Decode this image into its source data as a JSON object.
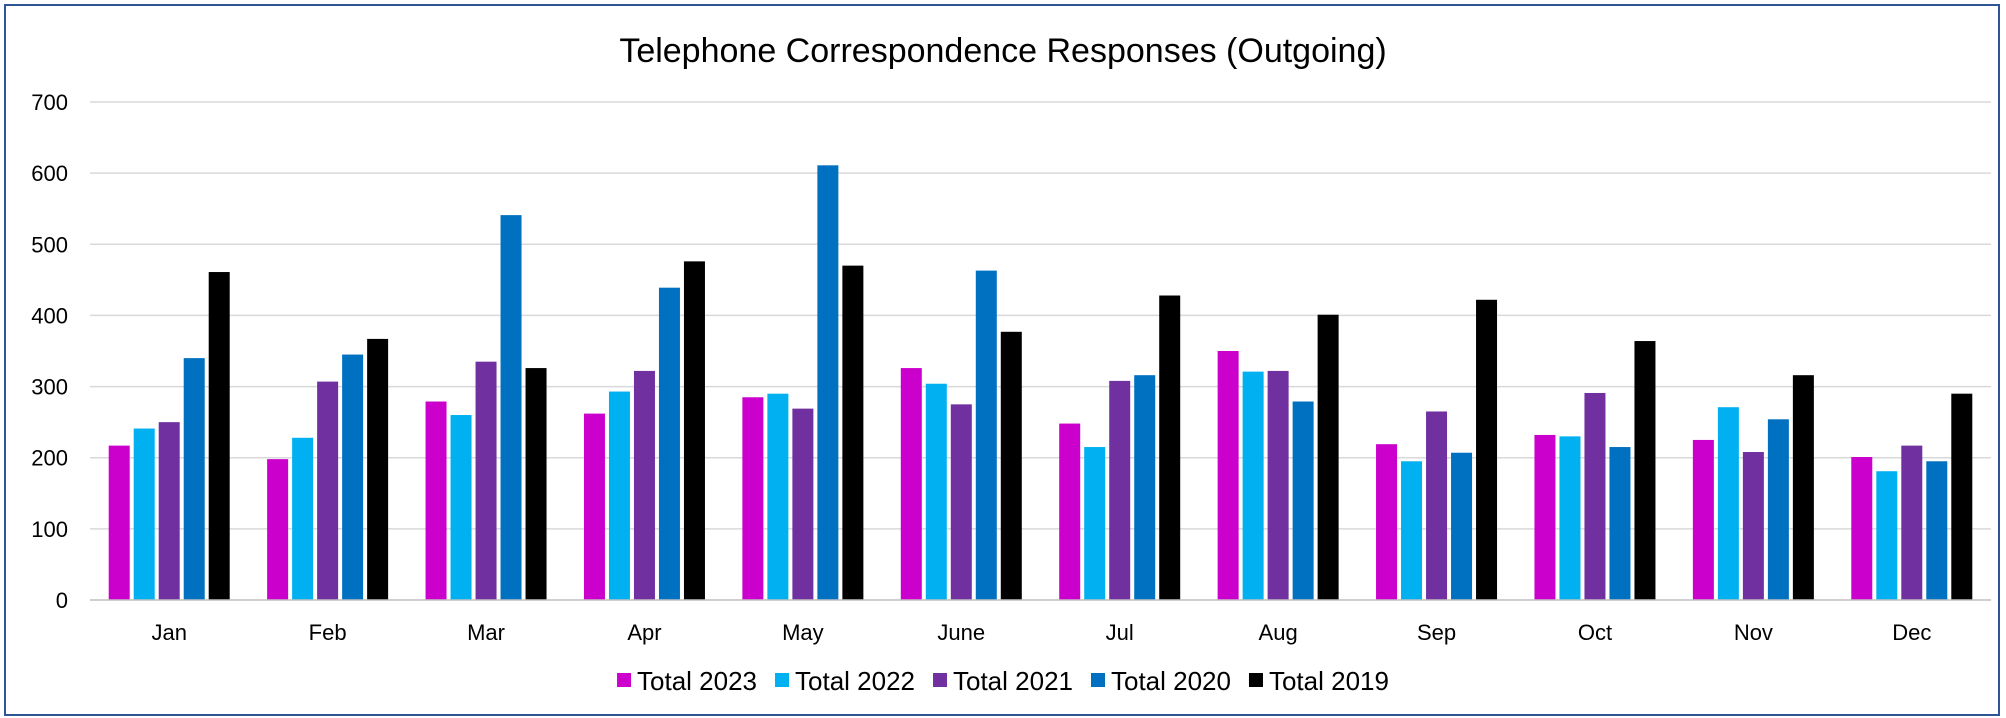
{
  "chart_data": {
    "type": "bar",
    "title": "Telephone Correspondence Responses (Outgoing)",
    "xlabel": "",
    "ylabel": "",
    "ylim": [
      0,
      700
    ],
    "yticks": [
      "0",
      "100",
      "200",
      "300",
      "400",
      "500",
      "600",
      "700"
    ],
    "grid": true,
    "legend_position": "bottom",
    "categories": [
      "Jan",
      "Feb",
      "Mar",
      "Apr",
      "May",
      "June",
      "Jul",
      "Aug",
      "Sep",
      "Oct",
      "Nov",
      "Dec"
    ],
    "series": [
      {
        "name": "Total 2023",
        "color": "#cc00cc",
        "values": [
          217,
          198,
          279,
          262,
          285,
          326,
          248,
          350,
          219,
          232,
          225,
          201
        ]
      },
      {
        "name": "Total 2022",
        "color": "#00b0f0",
        "values": [
          241,
          228,
          260,
          293,
          290,
          304,
          215,
          321,
          195,
          230,
          271,
          181
        ]
      },
      {
        "name": "Total 2021",
        "color": "#7030a0",
        "values": [
          250,
          307,
          335,
          322,
          269,
          275,
          308,
          322,
          265,
          291,
          208,
          217
        ]
      },
      {
        "name": "Total 2020",
        "color": "#0070c0",
        "values": [
          340,
          345,
          541,
          439,
          611,
          463,
          316,
          279,
          207,
          215,
          254,
          195
        ]
      },
      {
        "name": "Total 2019",
        "color": "#000000",
        "values": [
          461,
          367,
          326,
          476,
          470,
          377,
          428,
          401,
          422,
          364,
          316,
          290
        ]
      }
    ]
  }
}
